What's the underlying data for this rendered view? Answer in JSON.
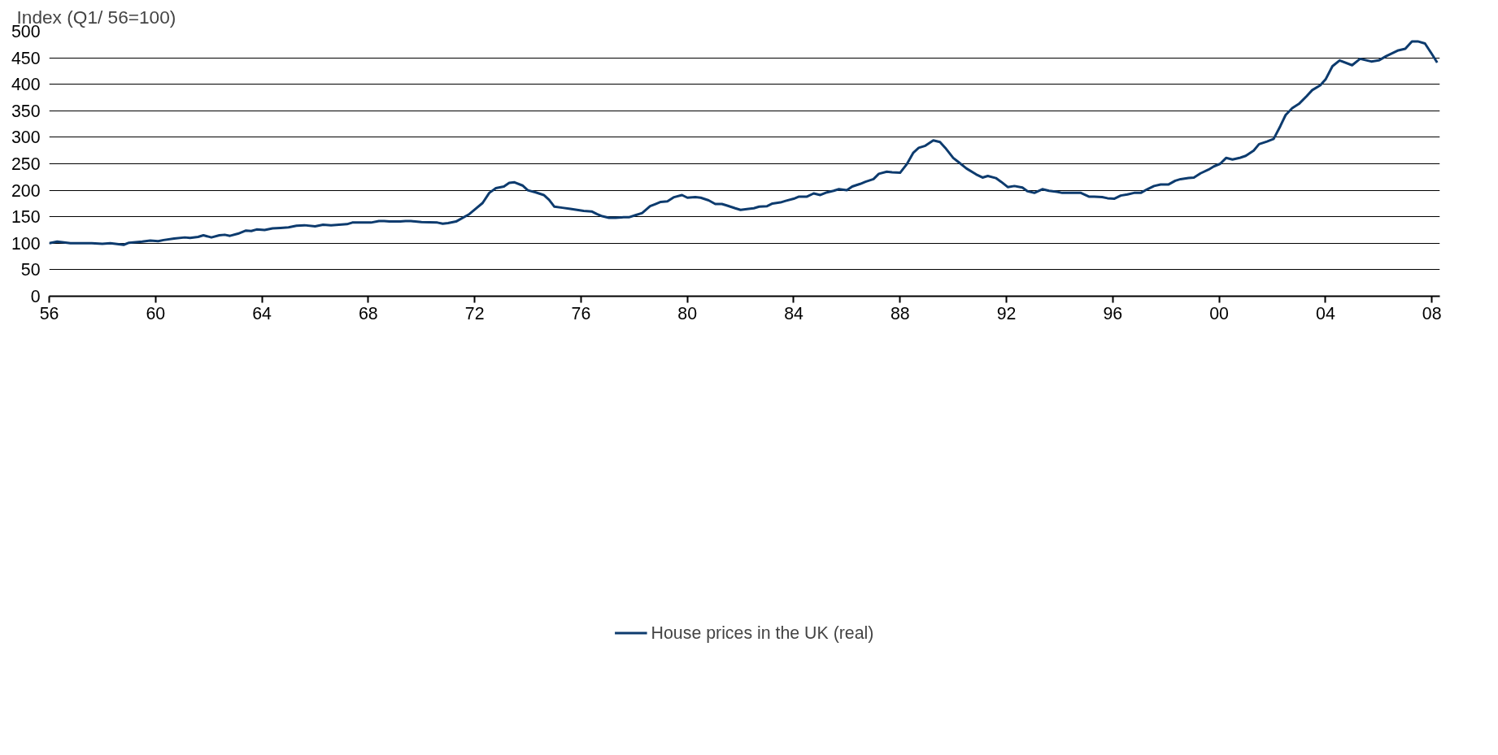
{
  "chart_data": {
    "type": "line",
    "ylabel": "Index (Q1/ 56=100)",
    "xlim": [
      1956,
      2008.3
    ],
    "ylim": [
      0,
      500
    ],
    "xticks": [
      {
        "value": 1956,
        "label": "56"
      },
      {
        "value": 1960,
        "label": "60"
      },
      {
        "value": 1964,
        "label": "64"
      },
      {
        "value": 1968,
        "label": "68"
      },
      {
        "value": 1972,
        "label": "72"
      },
      {
        "value": 1976,
        "label": "76"
      },
      {
        "value": 1980,
        "label": "80"
      },
      {
        "value": 1984,
        "label": "84"
      },
      {
        "value": 1988,
        "label": "88"
      },
      {
        "value": 1992,
        "label": "92"
      },
      {
        "value": 1996,
        "label": "96"
      },
      {
        "value": 2000,
        "label": "00"
      },
      {
        "value": 2004,
        "label": "04"
      },
      {
        "value": 2008,
        "label": "08"
      }
    ],
    "yticks": [
      0,
      50,
      100,
      150,
      200,
      250,
      300,
      350,
      400,
      450,
      500
    ],
    "grid": "y",
    "legend": "bottom",
    "marker": "none",
    "line_style": "solid",
    "x": [
      1956.0,
      1956.3,
      1956.8,
      1957.3,
      1957.6,
      1958.0,
      1958.3,
      1958.8,
      1959.0,
      1959.5,
      1959.8,
      1960.1,
      1960.3,
      1960.7,
      1961.1,
      1961.3,
      1961.6,
      1961.8,
      1962.1,
      1962.4,
      1962.6,
      1962.8,
      1963.1,
      1963.4,
      1963.6,
      1963.8,
      1964.1,
      1964.4,
      1964.7,
      1965.0,
      1965.3,
      1965.6,
      1966.0,
      1966.3,
      1966.6,
      1966.9,
      1967.2,
      1967.4,
      1967.7,
      1968.1,
      1968.4,
      1968.6,
      1968.8,
      1969.2,
      1969.4,
      1969.6,
      1970.0,
      1970.6,
      1970.8,
      1971.0,
      1971.3,
      1971.8,
      1972.3,
      1972.55,
      1972.8,
      1973.1,
      1973.3,
      1973.5,
      1973.8,
      1974.0,
      1974.3,
      1974.6,
      1974.8,
      1975.0,
      1975.3,
      1975.6,
      1975.85,
      1976.1,
      1976.4,
      1976.6,
      1976.8,
      1977.05,
      1977.3,
      1977.6,
      1977.8,
      1978.05,
      1978.3,
      1978.6,
      1978.8,
      1979.0,
      1979.25,
      1979.5,
      1979.8,
      1980.0,
      1980.3,
      1980.5,
      1980.8,
      1981.05,
      1981.3,
      1981.5,
      1981.8,
      1982.0,
      1982.3,
      1982.5,
      1982.7,
      1983.0,
      1983.2,
      1983.5,
      1983.7,
      1984.0,
      1984.2,
      1984.5,
      1984.75,
      1985.0,
      1985.25,
      1985.5,
      1985.7,
      1986.0,
      1986.2,
      1986.5,
      1986.7,
      1987.0,
      1987.2,
      1987.5,
      1987.7,
      1988.0,
      1988.25,
      1988.5,
      1988.7,
      1988.95,
      1989.25,
      1989.5,
      1989.7,
      1990.0,
      1990.2,
      1990.5,
      1990.86,
      1991.1,
      1991.3,
      1991.6,
      1991.8,
      1992.05,
      1992.3,
      1992.6,
      1992.8,
      1993.05,
      1993.35,
      1993.6,
      1993.9,
      1994.1,
      1994.8,
      1995.1,
      1995.3,
      1995.6,
      1995.8,
      1996.05,
      1996.3,
      1996.55,
      1996.8,
      1997.05,
      1997.3,
      1997.55,
      1997.8,
      1998.1,
      1998.35,
      1998.55,
      1998.85,
      1999.05,
      1999.3,
      1999.6,
      1999.8,
      2000.04,
      2000.26,
      2000.5,
      2000.77,
      2001.0,
      2001.3,
      2001.5,
      2001.8,
      2002.05,
      2002.3,
      2002.5,
      2002.75,
      2003.0,
      2003.3,
      2003.5,
      2003.8,
      2004.0,
      2004.26,
      2004.53,
      2005.0,
      2005.3,
      2005.72,
      2006.0,
      2006.28,
      2006.74,
      2007.0,
      2007.25,
      2007.47,
      2007.74,
      2008.0,
      2008.2
    ],
    "series": [
      {
        "name": "House prices in the UK (real)",
        "color": "#0d3b6e",
        "values": [
          100,
          103,
          100,
          100,
          100,
          99,
          100,
          97,
          101,
          103,
          105,
          104,
          106,
          109,
          111,
          110,
          112,
          115,
          111,
          115,
          116,
          114,
          118,
          124,
          123,
          126,
          125,
          128,
          129,
          130,
          133,
          134,
          132,
          135,
          134,
          135,
          136,
          139,
          139,
          139,
          142,
          142,
          141,
          141,
          142,
          142,
          140,
          139,
          137,
          138,
          141,
          155,
          176,
          195,
          204,
          207,
          214,
          215,
          209,
          200,
          196,
          191,
          182,
          169,
          167,
          165,
          163,
          161,
          160,
          155,
          151,
          148,
          148,
          149,
          149,
          153,
          157,
          170,
          174,
          178,
          179,
          187,
          191,
          186,
          187,
          186,
          181,
          174,
          174,
          171,
          166,
          163,
          165,
          166,
          169,
          170,
          175,
          177,
          180,
          184,
          188,
          188,
          194,
          191,
          196,
          199,
          202,
          200,
          207,
          212,
          216,
          221,
          231,
          235,
          234,
          233,
          249,
          271,
          280,
          284,
          294,
          291,
          280,
          261,
          253,
          241,
          230,
          224,
          227,
          223,
          216,
          206,
          208,
          205,
          198,
          195,
          202,
          199,
          197,
          195,
          195,
          188,
          188,
          187,
          185,
          184,
          190,
          192,
          195,
          195,
          202,
          208,
          211,
          211,
          218,
          221,
          223,
          224,
          232,
          239,
          245,
          250,
          261,
          258,
          261,
          265,
          275,
          287,
          292,
          297,
          321,
          342,
          355,
          363,
          378,
          389,
          398,
          409,
          434,
          445,
          436,
          448,
          443,
          445,
          453,
          464,
          467,
          481,
          481,
          477,
          457,
          441
        ]
      }
    ]
  }
}
